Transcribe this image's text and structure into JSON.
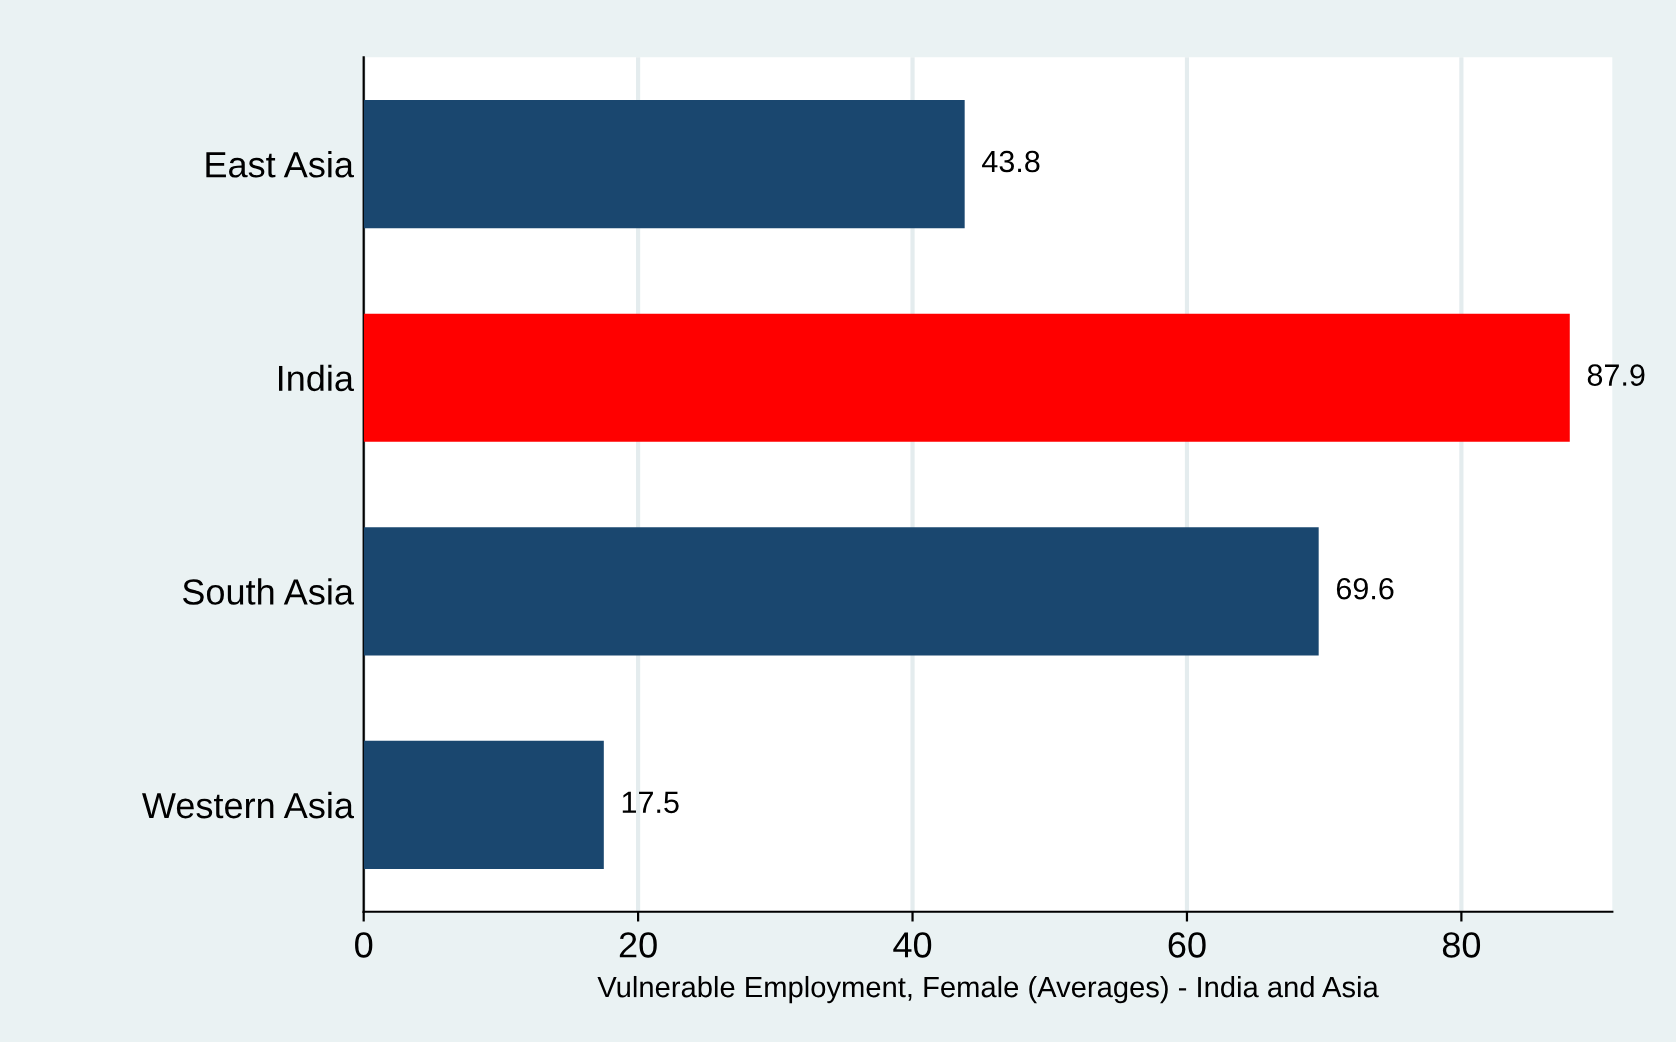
{
  "chart_data": {
    "type": "bar",
    "orientation": "horizontal",
    "xlabel": "Vulnerable Employment, Female (Averages) - India and Asia",
    "categories": [
      "East Asia",
      "India",
      "South Asia",
      "Western Asia"
    ],
    "values": [
      43.8,
      87.9,
      69.6,
      17.5
    ],
    "colors": [
      "#1a476f",
      "#ff0000",
      "#1a476f",
      "#1a476f"
    ],
    "xlim": [
      0,
      91
    ],
    "xticks": [
      0,
      20,
      40,
      60,
      80
    ],
    "grid": "x",
    "data_labels": true
  }
}
